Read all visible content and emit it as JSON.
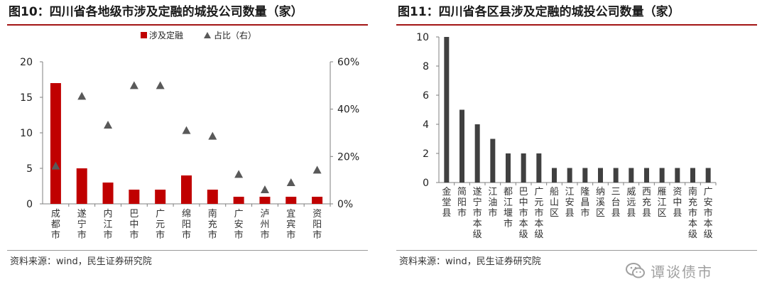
{
  "left": {
    "title": "图10：四川省各地级市涉及定融的城投公司数量（家）",
    "source": "资料来源：wind，民生证券研究院",
    "chart_data": {
      "type": "bar",
      "categories": [
        "成都市",
        "遂宁市",
        "内江市",
        "巴中市",
        "广元市",
        "绵阳市",
        "南充市",
        "广安市",
        "泸州市",
        "宜宾市",
        "资阳市"
      ],
      "series": [
        {
          "name": "涉及定融",
          "type": "bar",
          "axis": "left",
          "color": "#c00000",
          "values": [
            17,
            5,
            3,
            2,
            2,
            4,
            2,
            1,
            1,
            1,
            1
          ]
        },
        {
          "name": "占比（右）",
          "type": "scatter",
          "marker": "triangle",
          "axis": "right",
          "color": "#595959",
          "values": [
            0.16,
            0.455,
            0.333,
            0.5,
            0.5,
            0.31,
            0.286,
            0.125,
            0.06,
            0.09,
            0.143
          ]
        }
      ],
      "ylim": [
        0,
        20
      ],
      "yticks": [
        "0",
        "5",
        "10",
        "15",
        "20"
      ],
      "y2lim": [
        0,
        0.6
      ],
      "y2ticks": [
        "0%",
        "20%",
        "40%",
        "60%"
      ],
      "legend": "top-center",
      "grid": false
    }
  },
  "right": {
    "title": "图11：四川省各区县涉及定融的城投公司数量（家）",
    "chart_data": {
      "type": "bar",
      "categories": [
        "金堂县",
        "简阳市",
        "遂宁市本级",
        "江油市",
        "都江堰市",
        "巴中市本级",
        "广元市本级",
        "船山区",
        "江安县",
        "隆昌市",
        "纳溪区",
        "三台县",
        "威远县",
        "西充县",
        "雁江区",
        "资中县",
        "南充市本级",
        "广安市本级"
      ],
      "values": [
        10,
        5,
        4,
        3,
        2,
        2,
        2,
        1,
        1,
        1,
        1,
        1,
        1,
        1,
        1,
        1,
        1,
        1
      ],
      "color": "#404040",
      "ylim": [
        0,
        10
      ],
      "yticks": [
        "0",
        "2",
        "4",
        "6",
        "8",
        "10"
      ],
      "grid": false
    }
  },
  "footer": {
    "source": "资料来源：wind，民生证券研究院",
    "watermark": "谭谈债市"
  }
}
